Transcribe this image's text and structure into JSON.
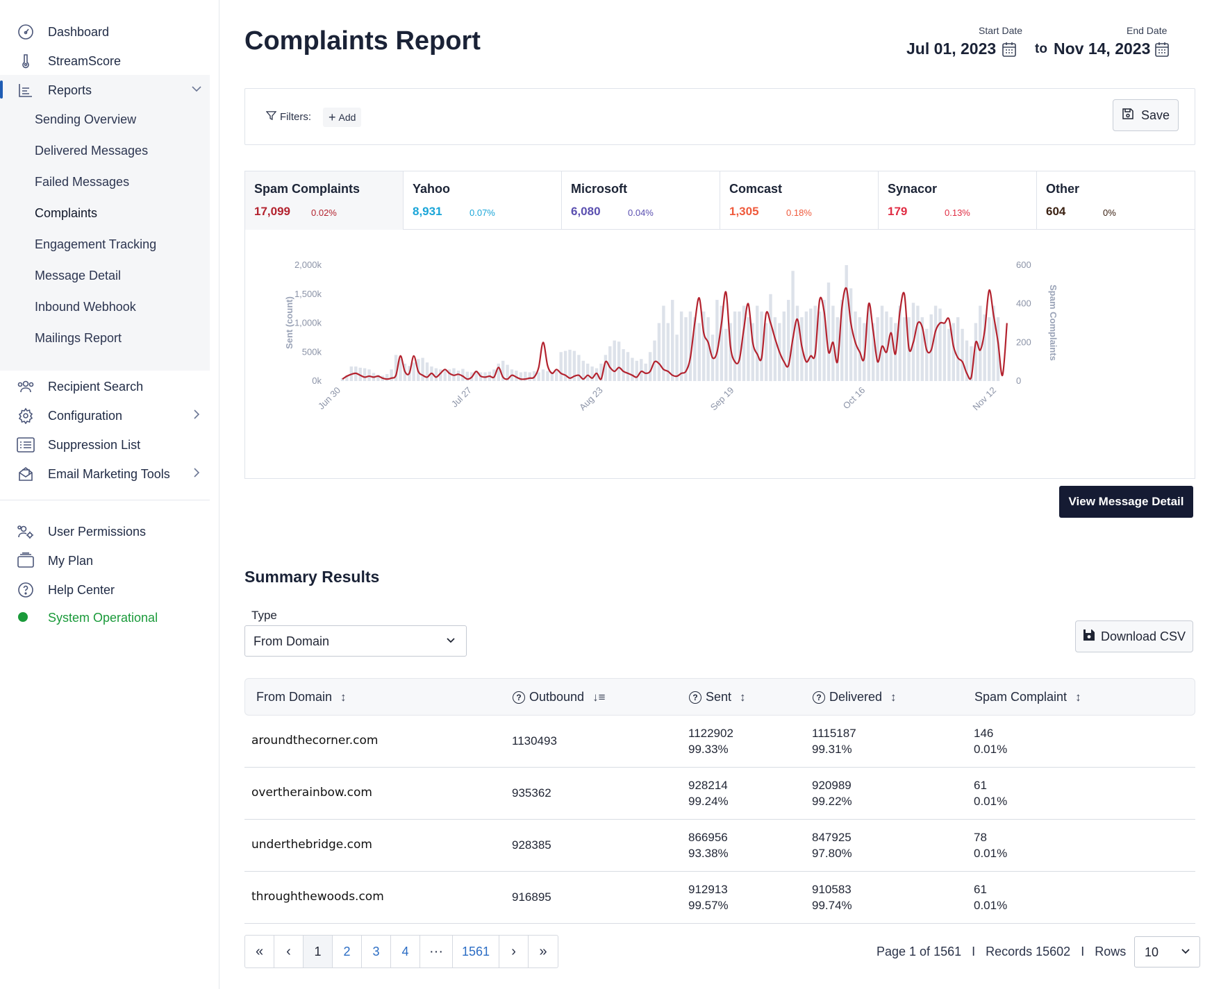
{
  "sidebar": {
    "top_items": [
      {
        "label": "Dashboard",
        "icon": "gauge-icon"
      },
      {
        "label": "StreamScore",
        "icon": "thermometer-icon"
      },
      {
        "label": "Reports",
        "icon": "reports-icon"
      }
    ],
    "report_sub_items": [
      {
        "label": "Sending Overview"
      },
      {
        "label": "Delivered Messages"
      },
      {
        "label": "Failed Messages"
      },
      {
        "label": "Complaints"
      },
      {
        "label": "Engagement Tracking"
      },
      {
        "label": "Message Detail"
      },
      {
        "label": "Inbound Webhook"
      },
      {
        "label": "Mailings Report"
      }
    ],
    "mid_items": [
      {
        "label": "Recipient Search",
        "icon": "users-icon"
      },
      {
        "label": "Configuration",
        "icon": "gear-icon"
      },
      {
        "label": "Suppression List",
        "icon": "list-icon"
      },
      {
        "label": "Email Marketing Tools",
        "icon": "mail-tools-icon"
      }
    ],
    "bottom_items": [
      {
        "label": "User Permissions",
        "icon": "user-permissions-icon"
      },
      {
        "label": "My Plan",
        "icon": "plan-icon"
      },
      {
        "label": "Help Center",
        "icon": "help-icon"
      }
    ],
    "status": {
      "label": "System Operational",
      "color": "#1a9a3a"
    }
  },
  "header": {
    "title": "Complaints Report",
    "start_date_label": "Start Date",
    "start_date": "Jul 01, 2023",
    "to_label": "to",
    "end_date_label": "End Date",
    "end_date": "Nov 14, 2023"
  },
  "filters": {
    "label": "Filters:",
    "add_label": "Add",
    "save_label": "Save"
  },
  "metrics": [
    {
      "name": "Spam Complaints",
      "value": "17,099",
      "pct": "0.02%",
      "color": "#b3222e",
      "active": true
    },
    {
      "name": "Yahoo",
      "value": "8,931",
      "pct": "0.07%",
      "color": "#1aa5d8",
      "active": false
    },
    {
      "name": "Microsoft",
      "value": "6,080",
      "pct": "0.04%",
      "color": "#5a4fb0",
      "active": false
    },
    {
      "name": "Comcast",
      "value": "1,305",
      "pct": "0.18%",
      "color": "#ef5a3c",
      "active": false
    },
    {
      "name": "Synacor",
      "value": "179",
      "pct": "0.13%",
      "color": "#e02d44",
      "active": false
    },
    {
      "name": "Other",
      "value": "604",
      "pct": "0%",
      "color": "#3b2112",
      "active": false
    }
  ],
  "chart_data": {
    "type": "line",
    "xlabel": "",
    "ylabel": "Sent (count)",
    "y2label": "Spam Complaints",
    "ylim": [
      0,
      2000
    ],
    "y2lim": [
      0,
      600
    ],
    "y_ticks": [
      "0k",
      "500k",
      "1,000k",
      "1,500k",
      "2,000k"
    ],
    "y2_ticks": [
      "0",
      "200",
      "400",
      "600"
    ],
    "x_tick_labels": [
      "Jun 30",
      "Jul 27",
      "Aug 23",
      "Sep 19",
      "Oct 16",
      "Nov 12"
    ],
    "colors": {
      "bars": "#dde2ea",
      "line": "#b3222e"
    },
    "series": [
      {
        "kind": "bar",
        "values": [
          50,
          100,
          250,
          250,
          230,
          220,
          200,
          140,
          110,
          90,
          120,
          200,
          450,
          380,
          300,
          260,
          320,
          380,
          400,
          320,
          250,
          220,
          200,
          210,
          200,
          220,
          180,
          210,
          160,
          150,
          180,
          150,
          150,
          160,
          200,
          300,
          350,
          280,
          200,
          180,
          150,
          160,
          150,
          170,
          150,
          200,
          170,
          160,
          200,
          500,
          520,
          540,
          520,
          450,
          350,
          300,
          250,
          220,
          300,
          450,
          600,
          700,
          680,
          550,
          500,
          400,
          350,
          380,
          300,
          500,
          700,
          1000,
          1300,
          1000,
          1400,
          800,
          1200,
          1100,
          1200,
          1100,
          1000,
          1200,
          1100,
          800,
          1400,
          1300,
          900,
          1000,
          1200,
          1200,
          1300,
          1100,
          1000,
          1300,
          1200,
          1000,
          1500,
          1100,
          1000,
          1200,
          1400,
          1900,
          1300,
          1100,
          1200,
          1250,
          1300,
          1200,
          1400,
          1700,
          1300,
          1100,
          1400,
          2000,
          1600,
          1200,
          1100,
          1000,
          1300,
          1000,
          1100,
          1300,
          1200,
          1100,
          1000,
          1300,
          1100,
          1100,
          1350,
          1300,
          1100,
          900,
          1150,
          1300,
          1250,
          1000,
          900,
          1000,
          1100,
          900,
          700,
          600,
          1000,
          1300,
          1150,
          1100,
          1300,
          1100
        ]
      },
      {
        "kind": "line",
        "name": "Spam Complaints",
        "values": [
          10,
          25,
          35,
          40,
          30,
          20,
          25,
          20,
          25,
          15,
          10,
          15,
          30,
          130,
          50,
          40,
          130,
          50,
          30,
          20,
          40,
          20,
          40,
          60,
          40,
          30,
          35,
          25,
          10,
          20,
          50,
          25,
          20,
          25,
          20,
          70,
          20,
          10,
          30,
          20,
          10,
          10,
          15,
          20,
          70,
          200,
          80,
          40,
          60,
          40,
          30,
          15,
          25,
          30,
          10,
          30,
          15,
          40,
          10,
          100,
          70,
          50,
          70,
          50,
          40,
          30,
          20,
          50,
          40,
          50,
          100,
          90,
          60,
          50,
          30,
          25,
          40,
          50,
          120,
          300,
          430,
          250,
          200,
          120,
          150,
          300,
          460,
          180,
          100,
          110,
          270,
          400,
          200,
          140,
          120,
          350,
          300,
          220,
          150,
          100,
          80,
          220,
          320,
          180,
          100,
          130,
          140,
          420,
          360,
          150,
          200,
          100,
          380,
          480,
          300,
          200,
          150,
          120,
          400,
          260,
          100,
          180,
          150,
          250,
          140,
          360,
          450,
          170,
          200,
          300,
          280,
          160,
          160,
          260,
          300,
          300,
          320,
          180,
          120,
          100,
          40,
          20,
          200,
          160,
          260,
          470,
          340,
          200,
          30,
          300
        ],
        "y_axis": "right"
      }
    ]
  },
  "buttons": {
    "view_message_detail": "View Message Detail",
    "download_csv": "Download CSV"
  },
  "summary": {
    "title": "Summary Results",
    "type_label": "Type",
    "type_value": "From Domain",
    "columns": [
      {
        "label": "From Domain",
        "help": false,
        "sort": "↕"
      },
      {
        "label": "Outbound",
        "help": true,
        "sort": "↓≡"
      },
      {
        "label": "Sent",
        "help": true,
        "sort": "↕"
      },
      {
        "label": "Delivered",
        "help": true,
        "sort": "↕"
      },
      {
        "label": "Spam Complaint",
        "help": false,
        "sort": "↕"
      }
    ],
    "rows": [
      {
        "domain": "aroundthecorner.com",
        "outbound": "1130493",
        "sent": "1122902",
        "sent_pct": "99.33%",
        "delivered": "1115187",
        "delivered_pct": "99.31%",
        "spam": "146",
        "spam_pct": "0.01%"
      },
      {
        "domain": "overtherainbow.com",
        "outbound": "935362",
        "sent": "928214",
        "sent_pct": "99.24%",
        "delivered": "920989",
        "delivered_pct": "99.22%",
        "spam": "61",
        "spam_pct": "0.01%"
      },
      {
        "domain": "underthebridge.com",
        "outbound": "928385",
        "sent": "866956",
        "sent_pct": "93.38%",
        "delivered": "847925",
        "delivered_pct": "97.80%",
        "spam": "78",
        "spam_pct": "0.01%"
      },
      {
        "domain": "throughthewoods.com",
        "outbound": "916895",
        "sent": "912913",
        "sent_pct": "99.57%",
        "delivered": "910583",
        "delivered_pct": "99.74%",
        "spam": "61",
        "spam_pct": "0.01%"
      }
    ]
  },
  "pagination": {
    "first": "«",
    "prev": "‹",
    "pages": [
      "1",
      "2",
      "3",
      "4"
    ],
    "ellipsis": "···",
    "last_page": "1561",
    "next": "›",
    "last": "»",
    "info": "Page 1 of 1561   I   Records 15602   I   Rows",
    "rows_value": "10"
  }
}
